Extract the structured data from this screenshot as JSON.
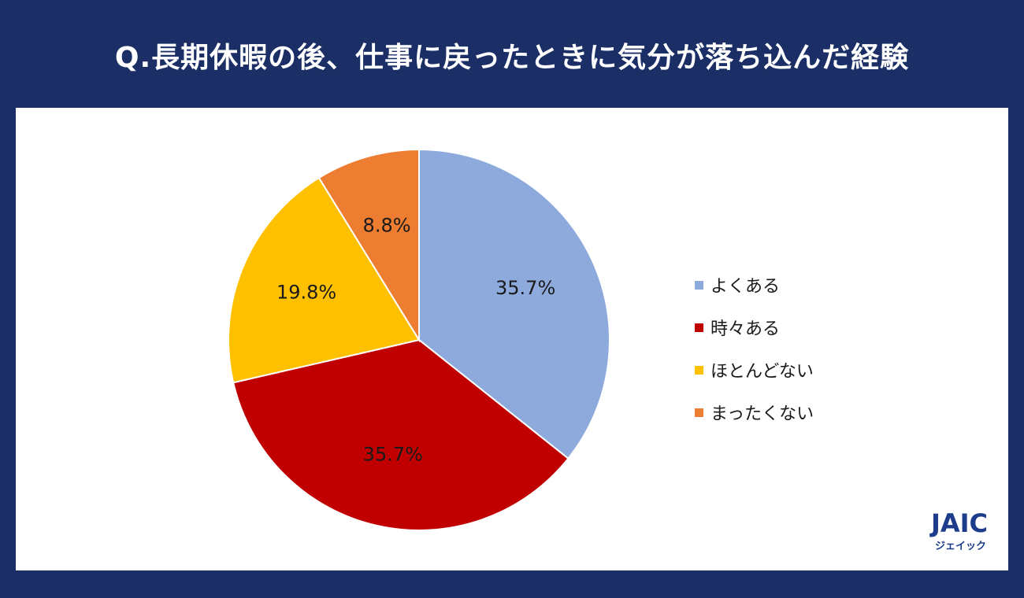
{
  "title": "Q.長期休暇の後、仕事に戻ったときに気分が落ち込んだ経験",
  "logo": {
    "mark": "JAIC",
    "sub": "ジェイック"
  },
  "chart_data": {
    "type": "pie",
    "title": "Q.長期休暇の後、仕事に戻ったときに気分が落ち込んだ経験",
    "categories": [
      "よくある",
      "時々ある",
      "ほとんどない",
      "まったくない"
    ],
    "values": [
      35.7,
      35.7,
      19.8,
      8.8
    ],
    "data_labels": [
      "35.7%",
      "35.7%",
      "19.8%",
      "8.8%"
    ],
    "colors": [
      "#8eaadc",
      "#c00000",
      "#ffc000",
      "#ed7d31"
    ],
    "start_angle": "12 o'clock",
    "direction": "clockwise",
    "legend_position": "right"
  }
}
